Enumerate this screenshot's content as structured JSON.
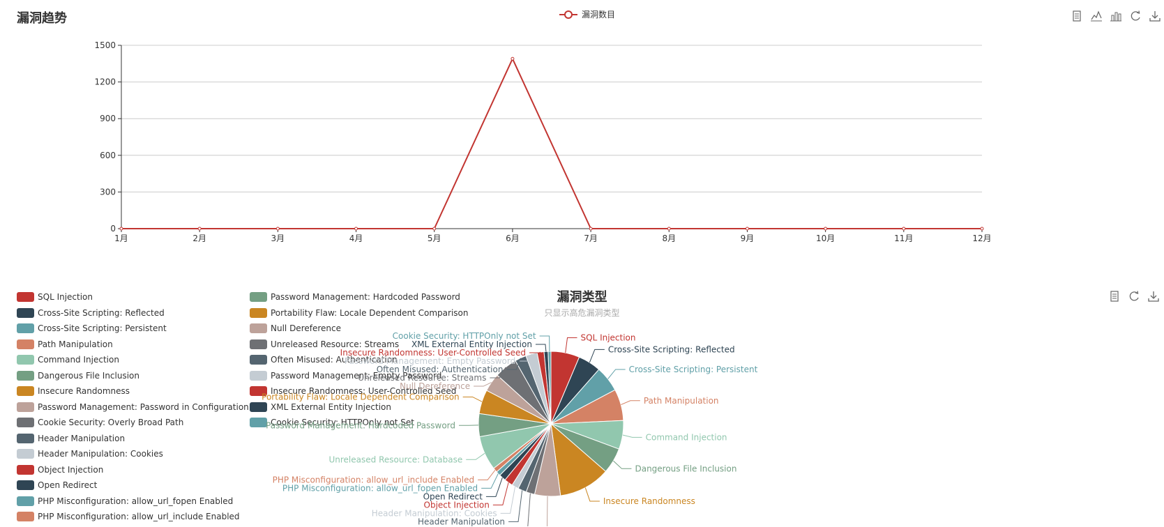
{
  "trend": {
    "title": "漏洞趋势",
    "legend_label": "漏洞数目",
    "color": "#c23531",
    "toolbox": [
      "data-view-icon",
      "line-chart-icon",
      "bar-chart-icon",
      "restore-icon",
      "download-icon"
    ]
  },
  "types": {
    "title": "漏洞类型",
    "subtitle": "只显示高危漏洞类型",
    "toolbox": [
      "data-view-icon",
      "restore-icon",
      "download-icon"
    ]
  },
  "chart_data": [
    {
      "type": "line",
      "categories": [
        "1月",
        "2月",
        "3月",
        "4月",
        "5月",
        "6月",
        "7月",
        "8月",
        "9月",
        "10月",
        "11月",
        "12月"
      ],
      "series": [
        {
          "name": "漏洞数目",
          "values": [
            0,
            0,
            0,
            0,
            0,
            1390,
            0,
            0,
            0,
            0,
            0,
            0
          ]
        }
      ],
      "ylim": [
        0,
        1500
      ],
      "yticks": [
        "0",
        "300",
        "600",
        "900",
        "1200",
        "1500"
      ],
      "grid": true
    },
    {
      "type": "pie",
      "title": "漏洞类型",
      "subtitle": "只显示高危漏洞类型",
      "labels": [
        "SQL Injection",
        "Cross-Site Scripting: Reflected",
        "Cross-Site Scripting: Persistent",
        "Path Manipulation",
        "Command Injection",
        "Dangerous File Inclusion",
        "Insecure Randomness",
        "Password Management: Password in Configuration File",
        "Cookie Security: Overly Broad Path",
        "Header Manipulation",
        "Header Manipulation: Cookies",
        "Object Injection",
        "Open Redirect",
        "PHP Misconfiguration: allow_url_fopen Enabled",
        "PHP Misconfiguration: allow_url_include Enabled",
        "Unreleased Resource: Database",
        "Password Management: Hardcoded Password",
        "Portability Flaw: Locale Dependent Comparison",
        "Null Dereference",
        "Unreleased Resource: Streams",
        "Often Misused: Authentication",
        "Password Management: Empty Password",
        "Insecure Randomness: User-Controlled Seed",
        "XML External Entity Injection",
        "Cookie Security: HTTPOnly not Set"
      ],
      "values": [
        50,
        40,
        45,
        55,
        50,
        45,
        90,
        45,
        15,
        15,
        12,
        15,
        12,
        8,
        8,
        60,
        40,
        42,
        32,
        40,
        20,
        20,
        12,
        7,
        5
      ],
      "colors": [
        "#c23531",
        "#2f4554",
        "#61a0a8",
        "#d48265",
        "#91c7ae",
        "#749f83",
        "#ca8622",
        "#bda29a",
        "#6e7074",
        "#546570",
        "#c4ccd3",
        "#c23531",
        "#2f4554",
        "#61a0a8",
        "#d48265",
        "#91c7ae",
        "#749f83",
        "#ca8622",
        "#bda29a",
        "#6e7074",
        "#546570",
        "#c4ccd3",
        "#c23531",
        "#2f4554",
        "#61a0a8"
      ],
      "legend": [
        "SQL Injection",
        "Cross-Site Scripting: Reflected",
        "Cross-Site Scripting: Persistent",
        "Path Manipulation",
        "Command Injection",
        "Dangerous File Inclusion",
        "Insecure Randomness",
        "Password Management: Password in Configuration File",
        "Cookie Security: Overly Broad Path",
        "Header Manipulation",
        "Header Manipulation: Cookies",
        "Object Injection",
        "Open Redirect",
        "PHP Misconfiguration: allow_url_fopen Enabled",
        "PHP Misconfiguration: allow_url_include Enabled",
        "Password Management: Hardcoded Password",
        "Portability Flaw: Locale Dependent Comparison",
        "Null Dereference",
        "Unreleased Resource: Streams",
        "Often Misused: Authentication",
        "Password Management: Empty Password",
        "Insecure Randomness: User-Controlled Seed",
        "XML External Entity Injection",
        "Cookie Security: HTTPOnly not Set"
      ],
      "legend_colors": [
        "#c23531",
        "#2f4554",
        "#61a0a8",
        "#d48265",
        "#91c7ae",
        "#749f83",
        "#ca8622",
        "#bda29a",
        "#6e7074",
        "#546570",
        "#c4ccd3",
        "#c23531",
        "#2f4554",
        "#61a0a8",
        "#d48265",
        "#749f83",
        "#ca8622",
        "#bda29a",
        "#6e7074",
        "#546570",
        "#c4ccd3",
        "#c23531",
        "#2f4554",
        "#61a0a8"
      ]
    }
  ]
}
